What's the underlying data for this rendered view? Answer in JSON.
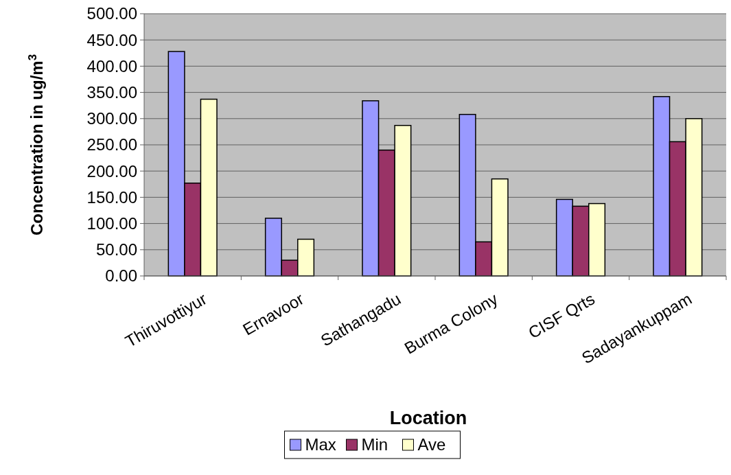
{
  "chart_data": {
    "type": "bar",
    "xlabel": "Location",
    "ylabel": "Concentration in ug/m$^{3}$",
    "categories": [
      "Thiruvottiyur",
      "Ernavoor",
      "Sathangadu",
      "Burma Colony",
      "CISF Qrts",
      "Sadayankuppam"
    ],
    "series": [
      {
        "name": "Max",
        "color": "#9999ff",
        "values": [
          428,
          110,
          334,
          308,
          146,
          342
        ]
      },
      {
        "name": "Min",
        "color": "#993366",
        "values": [
          177,
          30,
          240,
          65,
          133,
          256
        ]
      },
      {
        "name": "Ave",
        "color": "#ffffcc",
        "values": [
          337,
          70,
          287,
          185,
          138,
          300
        ]
      }
    ],
    "ylim": [
      0,
      500
    ],
    "yticks": [
      {
        "value": 0,
        "label": "0.00"
      },
      {
        "value": 50,
        "label": "50.00"
      },
      {
        "value": 100,
        "label": "100.00"
      },
      {
        "value": 150,
        "label": "150.00"
      },
      {
        "value": 200,
        "label": "200.00"
      },
      {
        "value": 250,
        "label": "250.00"
      },
      {
        "value": 300,
        "label": "300.00"
      },
      {
        "value": 350,
        "label": "350.00"
      },
      {
        "value": 400,
        "label": "400.00"
      },
      {
        "value": 450,
        "label": "450.00"
      },
      {
        "value": 500,
        "label": "500.00"
      }
    ],
    "grid": "y",
    "legend": "bottom"
  }
}
